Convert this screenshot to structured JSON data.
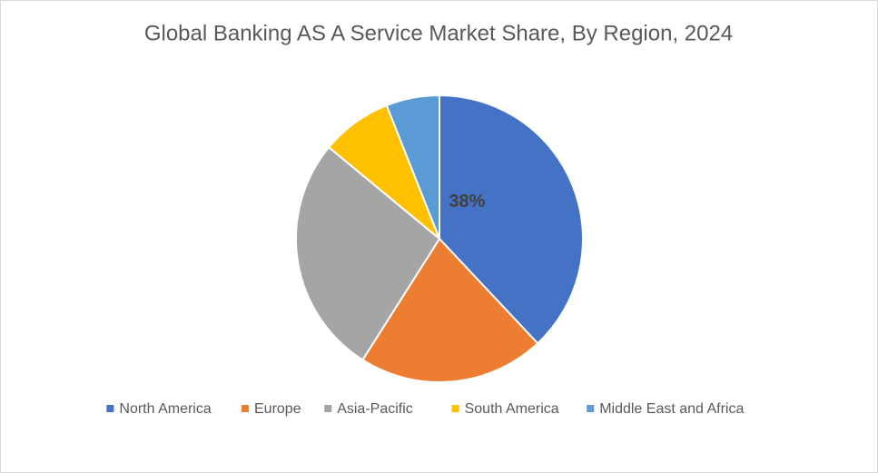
{
  "chart_data": {
    "type": "pie",
    "title": "Global Banking AS A Service Market Share, By Region, 2024",
    "categories": [
      "North America",
      "Europe",
      "Asia-Pacific",
      "South America",
      "Middle East and Africa"
    ],
    "values": [
      38,
      21,
      27,
      8,
      6
    ],
    "value_labels": [
      "38%",
      null,
      null,
      null,
      null
    ],
    "colors": [
      "#4472c4",
      "#ed7d31",
      "#a5a5a5",
      "#ffc000",
      "#5b9bd5"
    ],
    "legend": "bottom"
  }
}
